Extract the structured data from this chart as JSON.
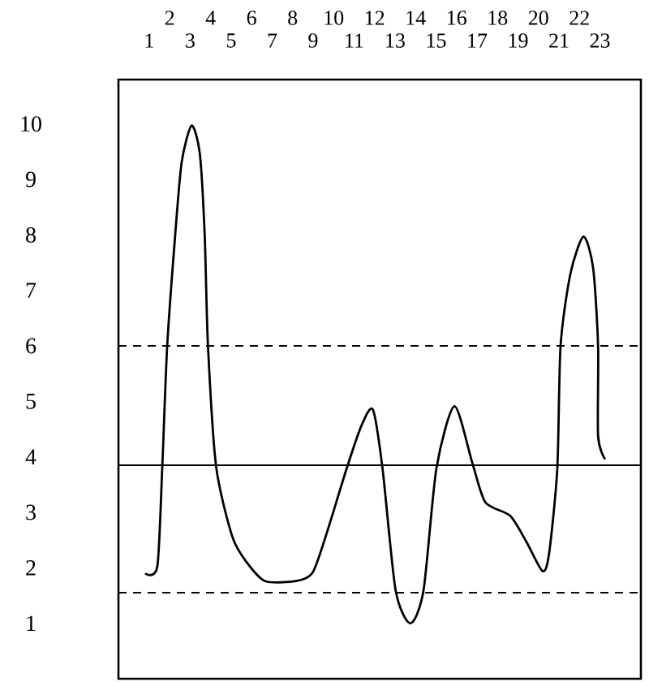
{
  "chart_data": {
    "type": "line",
    "x": [
      0.84,
      1.4,
      1.64,
      1.88,
      2.27,
      2.59,
      3.07,
      3.47,
      3.71,
      3.87,
      4.27,
      5.06,
      5.78,
      6.66,
      8.17,
      8.97,
      9.61,
      10.64,
      11.36,
      11.92,
      12.39,
      13.03,
      13.75,
      14.39,
      15.02,
      15.9,
      16.78,
      17.41,
      18.61,
      19.41,
      20.2,
      20.52,
      20.92,
      21.08,
      21.56,
      22.2,
      22.67,
      22.91,
      22.91,
      23.23
    ],
    "values": [
      1.89,
      2.03,
      3.82,
      6.0,
      8.0,
      9.32,
      9.97,
      9.47,
      8.0,
      6.0,
      3.82,
      2.56,
      2.09,
      1.76,
      1.76,
      1.91,
      2.56,
      3.79,
      4.56,
      4.85,
      3.79,
      1.59,
      1.0,
      1.59,
      3.79,
      4.91,
      3.88,
      3.18,
      2.94,
      2.47,
      1.94,
      2.26,
      3.79,
      6.0,
      7.3,
      7.97,
      7.4,
      6.0,
      4.38,
      3.97
    ],
    "color": "#000000",
    "marker": "none",
    "line_style": "solid",
    "xlim": [
      -0.5,
      25
    ],
    "xticks": [
      1,
      3,
      5,
      7,
      9,
      11,
      13,
      15,
      17,
      19,
      21,
      23
    ],
    "x2lim": [
      -0.5,
      25
    ],
    "x2ticks": [
      2,
      4,
      6,
      8,
      10,
      12,
      14,
      16,
      18,
      20,
      22
    ],
    "ylim": [
      0,
      10.8
    ],
    "yticks": [
      1,
      2,
      3,
      4,
      5,
      6,
      7,
      8,
      9,
      10
    ],
    "ref_lines": [
      {
        "axis": "y",
        "value": 3.85,
        "line_style": "solid"
      },
      {
        "axis": "y",
        "value": 6.0,
        "line_style": "dashed"
      },
      {
        "axis": "y",
        "value": 1.55,
        "line_style": "dashed"
      }
    ]
  }
}
